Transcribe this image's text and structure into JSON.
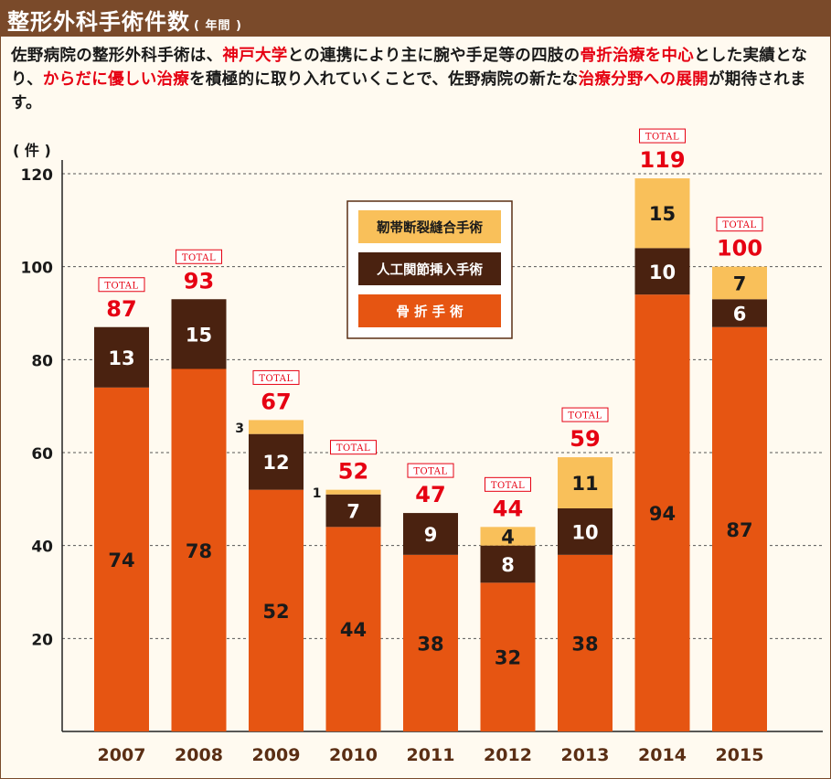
{
  "header": {
    "title": "整形外科手術件数",
    "title_sub": "( 年間 )"
  },
  "description": {
    "segments": [
      {
        "text": "佐野病院の整形外科手術は、",
        "highlight": false
      },
      {
        "text": "神戸大学",
        "highlight": true
      },
      {
        "text": "との連携により主に腕や手足等の四肢の",
        "highlight": false
      },
      {
        "text": "骨折治療を中心",
        "highlight": true
      },
      {
        "text": "とした実績となり、",
        "highlight": false
      },
      {
        "text": "からだに優しい治療",
        "highlight": true
      },
      {
        "text": "を積極的に取り入れていくことで、佐野病院の新たな",
        "highlight": false
      },
      {
        "text": "治療分野への展開",
        "highlight": true
      },
      {
        "text": "が期待されます。",
        "highlight": false
      }
    ]
  },
  "colors": {
    "header_bg": "#7a4a2a",
    "fracture": "#e65512",
    "joint": "#4a2210",
    "ligament": "#f9c05a",
    "total": "#e60012"
  },
  "chart_data": {
    "type": "bar",
    "stacked": true,
    "unit_label": "( 件 )",
    "ylim": [
      0,
      120
    ],
    "yticks": [
      20,
      40,
      60,
      80,
      100,
      120
    ],
    "grid": true,
    "legend_position": "top-center",
    "total_label": "TOTAL",
    "categories": [
      "2007",
      "2008",
      "2009",
      "2010",
      "2011",
      "2012",
      "2013",
      "2014",
      "2015"
    ],
    "series": [
      {
        "name": "骨 折 手 術",
        "key": "fracture",
        "values": [
          74,
          78,
          52,
          44,
          38,
          32,
          38,
          94,
          87
        ]
      },
      {
        "name": "人工関節挿入手術",
        "key": "joint",
        "values": [
          13,
          15,
          12,
          7,
          9,
          8,
          10,
          10,
          6
        ]
      },
      {
        "name": "靭帯断裂縫合手術",
        "key": "ligament",
        "values": [
          0,
          0,
          3,
          1,
          0,
          4,
          11,
          15,
          7
        ]
      }
    ],
    "totals": [
      87,
      93,
      67,
      52,
      47,
      44,
      59,
      119,
      100
    ]
  }
}
